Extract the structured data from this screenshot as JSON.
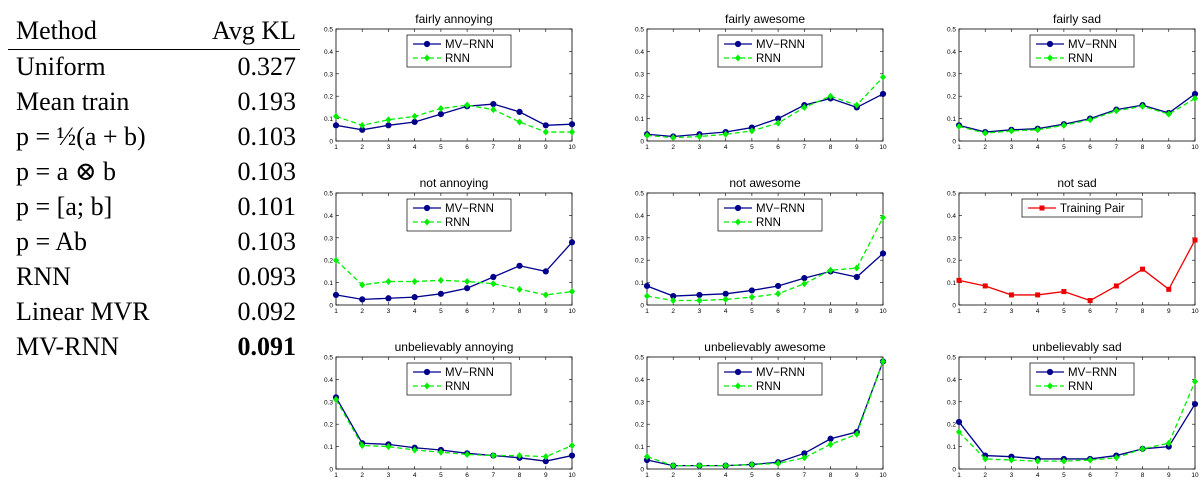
{
  "table": {
    "headers": [
      "Method",
      "Avg KL"
    ],
    "rows": [
      {
        "method": "Uniform",
        "kl": "0.327"
      },
      {
        "method": "Mean train",
        "kl": "0.193"
      },
      {
        "method": "p = ½(a + b)",
        "kl": "0.103"
      },
      {
        "method": "p = a ⊗ b",
        "kl": "0.103"
      },
      {
        "method": "p = [a; b]",
        "kl": "0.101"
      },
      {
        "method": "p = Ab",
        "kl": "0.103"
      },
      {
        "method": "RNN",
        "kl": "0.093"
      },
      {
        "method": "Linear MVR",
        "kl": "0.092"
      },
      {
        "method": "MV-RNN",
        "kl": "0.091",
        "best": true
      }
    ]
  },
  "colors": {
    "mvrnn": "#00008b",
    "rnn": "#00ee00",
    "training": "#ee0000"
  },
  "chart_data": [
    {
      "type": "line",
      "title": "fairly annoying",
      "x": [
        1,
        2,
        3,
        4,
        5,
        6,
        7,
        8,
        9,
        10
      ],
      "ylim": [
        0,
        0.5
      ],
      "yticks": [
        "0",
        "0.1",
        "0.2",
        "0.3",
        "0.4",
        "0.5"
      ],
      "legend": "top-center",
      "series": [
        {
          "name": "MV−RNN",
          "style": "mvrnn",
          "values": [
            0.07,
            0.05,
            0.07,
            0.085,
            0.12,
            0.155,
            0.165,
            0.13,
            0.07,
            0.075
          ]
        },
        {
          "name": "RNN",
          "style": "rnn",
          "values": [
            0.11,
            0.07,
            0.095,
            0.11,
            0.145,
            0.16,
            0.14,
            0.085,
            0.04,
            0.04
          ]
        }
      ]
    },
    {
      "type": "line",
      "title": "fairly awesome",
      "x": [
        1,
        2,
        3,
        4,
        5,
        6,
        7,
        8,
        9,
        10
      ],
      "ylim": [
        0,
        0.5
      ],
      "yticks": [
        "0",
        "0.1",
        "0.2",
        "0.3",
        "0.4",
        "0.5"
      ],
      "legend": "top-center",
      "series": [
        {
          "name": "MV−RNN",
          "style": "mvrnn",
          "values": [
            0.03,
            0.02,
            0.03,
            0.04,
            0.06,
            0.1,
            0.16,
            0.19,
            0.15,
            0.21
          ]
        },
        {
          "name": "RNN",
          "style": "rnn",
          "values": [
            0.025,
            0.015,
            0.02,
            0.03,
            0.045,
            0.08,
            0.15,
            0.2,
            0.16,
            0.285
          ]
        }
      ]
    },
    {
      "type": "line",
      "title": "fairly sad",
      "x": [
        1,
        2,
        3,
        4,
        5,
        6,
        7,
        8,
        9,
        10
      ],
      "ylim": [
        0,
        0.5
      ],
      "yticks": [
        "0",
        "0.1",
        "0.2",
        "0.3",
        "0.4",
        "0.5"
      ],
      "legend": "top-center",
      "series": [
        {
          "name": "MV−RNN",
          "style": "mvrnn",
          "values": [
            0.07,
            0.04,
            0.05,
            0.055,
            0.075,
            0.1,
            0.14,
            0.16,
            0.125,
            0.21
          ]
        },
        {
          "name": "RNN",
          "style": "rnn",
          "values": [
            0.065,
            0.035,
            0.045,
            0.05,
            0.07,
            0.095,
            0.135,
            0.155,
            0.12,
            0.19
          ]
        }
      ]
    },
    {
      "type": "line",
      "title": "not annoying",
      "x": [
        1,
        2,
        3,
        4,
        5,
        6,
        7,
        8,
        9,
        10
      ],
      "ylim": [
        0,
        0.5
      ],
      "yticks": [
        "0",
        "0.1",
        "0.2",
        "0.3",
        "0.4",
        "0.5"
      ],
      "legend": "top-center",
      "series": [
        {
          "name": "MV−RNN",
          "style": "mvrnn",
          "values": [
            0.045,
            0.025,
            0.03,
            0.035,
            0.05,
            0.075,
            0.125,
            0.175,
            0.15,
            0.28
          ]
        },
        {
          "name": "RNN",
          "style": "rnn",
          "values": [
            0.2,
            0.09,
            0.105,
            0.105,
            0.11,
            0.105,
            0.095,
            0.07,
            0.045,
            0.06
          ]
        }
      ]
    },
    {
      "type": "line",
      "title": "not awesome",
      "x": [
        1,
        2,
        3,
        4,
        5,
        6,
        7,
        8,
        9,
        10
      ],
      "ylim": [
        0,
        0.5
      ],
      "yticks": [
        "0",
        "0.1",
        "0.2",
        "0.3",
        "0.4",
        "0.5"
      ],
      "legend": "top-center",
      "series": [
        {
          "name": "MV−RNN",
          "style": "mvrnn",
          "values": [
            0.085,
            0.04,
            0.045,
            0.05,
            0.065,
            0.085,
            0.12,
            0.15,
            0.125,
            0.23
          ]
        },
        {
          "name": "RNN",
          "style": "rnn",
          "values": [
            0.04,
            0.02,
            0.02,
            0.025,
            0.035,
            0.05,
            0.095,
            0.155,
            0.165,
            0.39
          ]
        }
      ]
    },
    {
      "type": "line",
      "title": "not sad",
      "x": [
        1,
        2,
        3,
        4,
        5,
        6,
        7,
        8,
        9,
        10
      ],
      "ylim": [
        0,
        0.5
      ],
      "yticks": [
        "0",
        "0.1",
        "0.2",
        "0.3",
        "0.4",
        "0.5"
      ],
      "legend": "top-center",
      "series": [
        {
          "name": "Training Pair",
          "style": "training",
          "values": [
            0.11,
            0.085,
            0.045,
            0.045,
            0.06,
            0.02,
            0.085,
            0.16,
            0.07,
            0.29
          ]
        }
      ]
    },
    {
      "type": "line",
      "title": "unbelievably annoying",
      "x": [
        1,
        2,
        3,
        4,
        5,
        6,
        7,
        8,
        9,
        10
      ],
      "ylim": [
        0,
        0.5
      ],
      "yticks": [
        "0",
        "0.1",
        "0.2",
        "0.3",
        "0.4",
        "0.5"
      ],
      "legend": "top-center",
      "series": [
        {
          "name": "MV−RNN",
          "style": "mvrnn",
          "values": [
            0.32,
            0.115,
            0.11,
            0.095,
            0.085,
            0.07,
            0.06,
            0.05,
            0.035,
            0.06
          ]
        },
        {
          "name": "RNN",
          "style": "rnn",
          "values": [
            0.31,
            0.105,
            0.1,
            0.085,
            0.075,
            0.065,
            0.06,
            0.06,
            0.055,
            0.105
          ]
        }
      ]
    },
    {
      "type": "line",
      "title": "unbelievably awesome",
      "x": [
        1,
        2,
        3,
        4,
        5,
        6,
        7,
        8,
        9,
        10
      ],
      "ylim": [
        0,
        0.5
      ],
      "yticks": [
        "0",
        "0.1",
        "0.2",
        "0.3",
        "0.4",
        "0.5"
      ],
      "legend": "top-center",
      "series": [
        {
          "name": "MV−RNN",
          "style": "mvrnn",
          "values": [
            0.04,
            0.015,
            0.015,
            0.015,
            0.02,
            0.03,
            0.07,
            0.135,
            0.165,
            0.48
          ]
        },
        {
          "name": "RNN",
          "style": "rnn",
          "values": [
            0.055,
            0.015,
            0.015,
            0.015,
            0.02,
            0.025,
            0.05,
            0.11,
            0.155,
            0.48
          ]
        }
      ]
    },
    {
      "type": "line",
      "title": "unbelievably sad",
      "x": [
        1,
        2,
        3,
        4,
        5,
        6,
        7,
        8,
        9,
        10
      ],
      "ylim": [
        0,
        0.5
      ],
      "yticks": [
        "0",
        "0.1",
        "0.2",
        "0.3",
        "0.4",
        "0.5"
      ],
      "legend": "top-center",
      "series": [
        {
          "name": "MV−RNN",
          "style": "mvrnn",
          "values": [
            0.21,
            0.06,
            0.055,
            0.045,
            0.045,
            0.045,
            0.06,
            0.09,
            0.1,
            0.29
          ]
        },
        {
          "name": "RNN",
          "style": "rnn",
          "values": [
            0.165,
            0.045,
            0.04,
            0.035,
            0.035,
            0.04,
            0.05,
            0.09,
            0.115,
            0.39
          ]
        }
      ]
    }
  ]
}
